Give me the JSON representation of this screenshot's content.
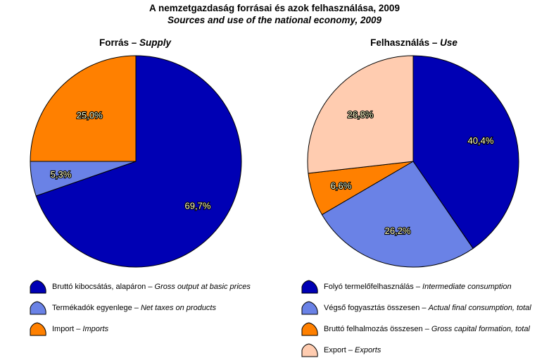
{
  "title_hu": "A nemzetgazdaság forrásai és azok felhasználása, 2009",
  "title_en": "Sources and use of the national economy, 2009",
  "chart_data": [
    {
      "type": "pie",
      "title_hu": "Forrás",
      "title_en": "Supply",
      "slices": [
        {
          "label_hu": "Bruttó kibocsátás, alapáron",
          "label_en": "Gross output at basic prices",
          "value": 69.7,
          "value_label": "69,7%",
          "color": "#0000B4"
        },
        {
          "label_hu": "Termékadók egyenlege",
          "label_en": "Net taxes on products",
          "value": 5.3,
          "value_label": "5,3%",
          "color": "#6A82E6"
        },
        {
          "label_hu": "Import",
          "label_en": "Imports",
          "value": 25.0,
          "value_label": "25,0%",
          "color": "#FF8000"
        }
      ]
    },
    {
      "type": "pie",
      "title_hu": "Felhasználás",
      "title_en": "Use",
      "slices": [
        {
          "label_hu": "Folyó termelőfelhasználás",
          "label_en": "Intermediate consumption",
          "value": 40.4,
          "value_label": "40,4%",
          "color": "#0000B4"
        },
        {
          "label_hu": "Végső fogyasztás összesen",
          "label_en": "Actual final consumption, total",
          "value": 26.2,
          "value_label": "26,2%",
          "color": "#6A82E6"
        },
        {
          "label_hu": "Bruttó felhalmozás összesen",
          "label_en": "Gross capital formation, total",
          "value": 6.6,
          "value_label": "6,6%",
          "color": "#FF8000"
        },
        {
          "label_hu": "Export",
          "label_en": "Exports",
          "value": 26.8,
          "value_label": "26,8%",
          "color": "#FFCCB0"
        }
      ]
    }
  ]
}
